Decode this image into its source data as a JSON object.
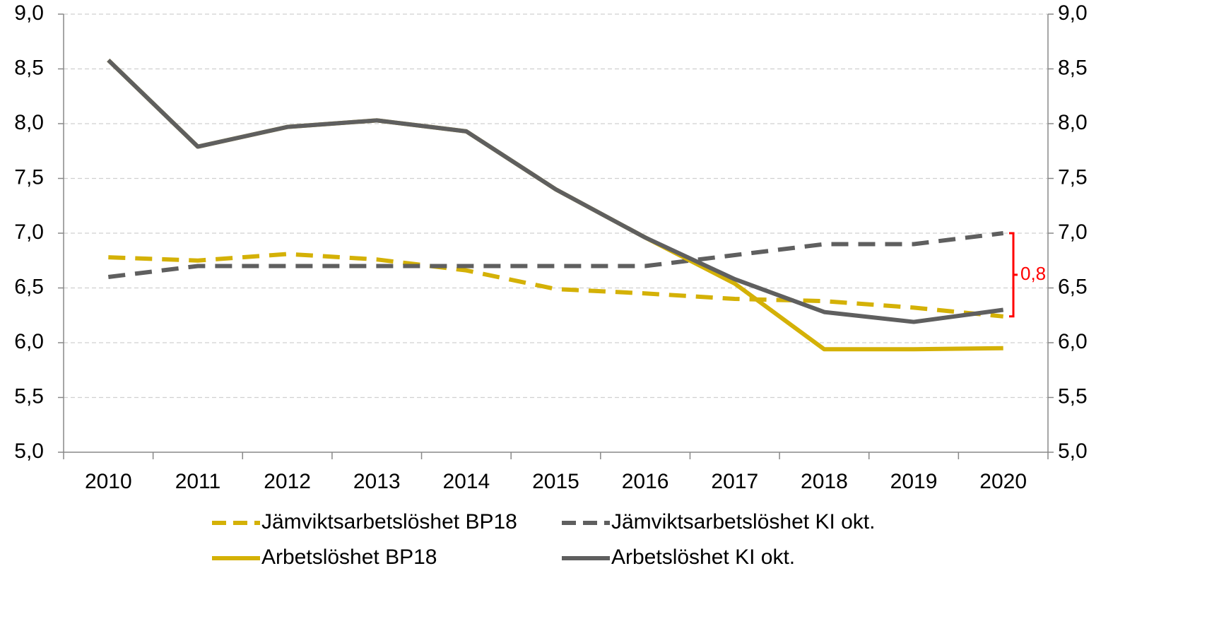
{
  "chart_data": {
    "type": "line",
    "categories": [
      "2010",
      "2011",
      "2012",
      "2013",
      "2014",
      "2015",
      "2016",
      "2017",
      "2018",
      "2019",
      "2020"
    ],
    "series": [
      {
        "name": "Jämviktsarbetslöshet BP18",
        "color": "#d4b106",
        "dashed": true,
        "values": [
          6.78,
          6.75,
          6.81,
          6.76,
          6.66,
          6.49,
          6.45,
          6.4,
          6.38,
          6.32,
          6.24
        ]
      },
      {
        "name": "Jämviktsarbetslöshet KI okt.",
        "color": "#5f5f5f",
        "dashed": true,
        "values": [
          6.6,
          6.7,
          6.7,
          6.7,
          6.7,
          6.7,
          6.7,
          6.8,
          6.9,
          6.9,
          7.0
        ]
      },
      {
        "name": "Arbetslöshet BP18",
        "color": "#d4b106",
        "dashed": false,
        "values": [
          8.58,
          7.79,
          7.97,
          8.03,
          7.93,
          7.4,
          6.96,
          6.54,
          5.94,
          5.94,
          5.95
        ]
      },
      {
        "name": "Arbetslöshet KI okt.",
        "color": "#5f5f5f",
        "dashed": false,
        "values": [
          8.58,
          7.79,
          7.97,
          8.03,
          7.93,
          7.4,
          6.96,
          6.58,
          6.28,
          6.19,
          6.3
        ]
      }
    ],
    "ylim": [
      5,
      9
    ],
    "yticks": [
      {
        "value": 5,
        "label": "5,0"
      },
      {
        "value": 5.5,
        "label": "5,5"
      },
      {
        "value": 6,
        "label": "6,0"
      },
      {
        "value": 6.5,
        "label": "6,5"
      },
      {
        "value": 7,
        "label": "7,0"
      },
      {
        "value": 7.5,
        "label": "7,5"
      },
      {
        "value": 8,
        "label": "8,0"
      },
      {
        "value": 8.5,
        "label": "8,5"
      },
      {
        "value": 9,
        "label": "9,0"
      }
    ],
    "y2lim": [
      5,
      9
    ],
    "y2ticks": [
      {
        "value": 5,
        "label": "5,0"
      },
      {
        "value": 5.5,
        "label": "5,5"
      },
      {
        "value": 6,
        "label": "6,0"
      },
      {
        "value": 6.5,
        "label": "6,5"
      },
      {
        "value": 7,
        "label": "7,0"
      },
      {
        "value": 7.5,
        "label": "7,5"
      },
      {
        "value": 8,
        "label": "8,0"
      },
      {
        "value": 8.5,
        "label": "8,5"
      },
      {
        "value": 9,
        "label": "9,0"
      }
    ],
    "grid": true,
    "annotation": "0,8",
    "annotation_color": "#ff0000"
  }
}
